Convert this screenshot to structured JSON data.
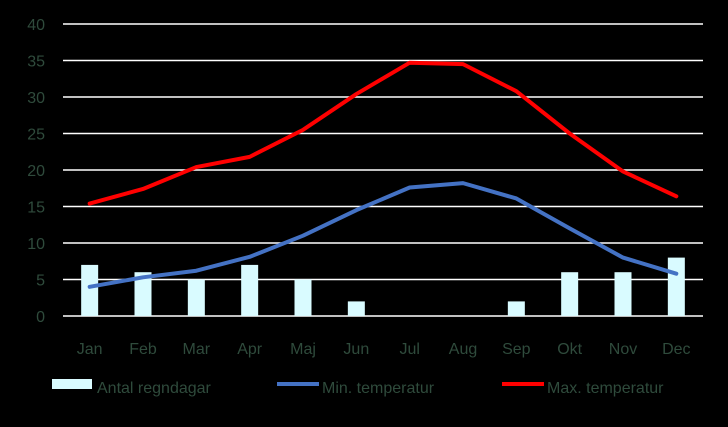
{
  "chart_data": {
    "type": "bar",
    "categories": [
      "Jan",
      "Feb",
      "Mar",
      "Apr",
      "Maj",
      "Jun",
      "Jul",
      "Aug",
      "Sep",
      "Okt",
      "Nov",
      "Dec"
    ],
    "series": [
      {
        "name": "Antal regndagar",
        "type": "bar",
        "color": "#d9fbff",
        "values": [
          7,
          6,
          5,
          7,
          5,
          2,
          0,
          0,
          2,
          6,
          6,
          8
        ]
      },
      {
        "name": "Min. temperatur",
        "type": "line",
        "color": "#4472c4",
        "values": [
          4,
          5.3,
          6.2,
          8.1,
          11,
          14.5,
          17.6,
          18.2,
          16.1,
          12,
          8,
          5.8
        ]
      },
      {
        "name": "Max. temperatur",
        "type": "line",
        "color": "#ff0000",
        "values": [
          15.4,
          17.4,
          20.4,
          21.8,
          25.5,
          30.4,
          34.7,
          34.5,
          30.8,
          25,
          19.8,
          16.4
        ]
      }
    ],
    "yticks": [
      "0",
      "5",
      "10",
      "15",
      "20",
      "25",
      "30",
      "35",
      "40"
    ],
    "ylim": [
      0,
      40
    ],
    "grid": true,
    "legend_position": "bottom",
    "background": "#000000",
    "text_color": "#2f4b3c"
  }
}
